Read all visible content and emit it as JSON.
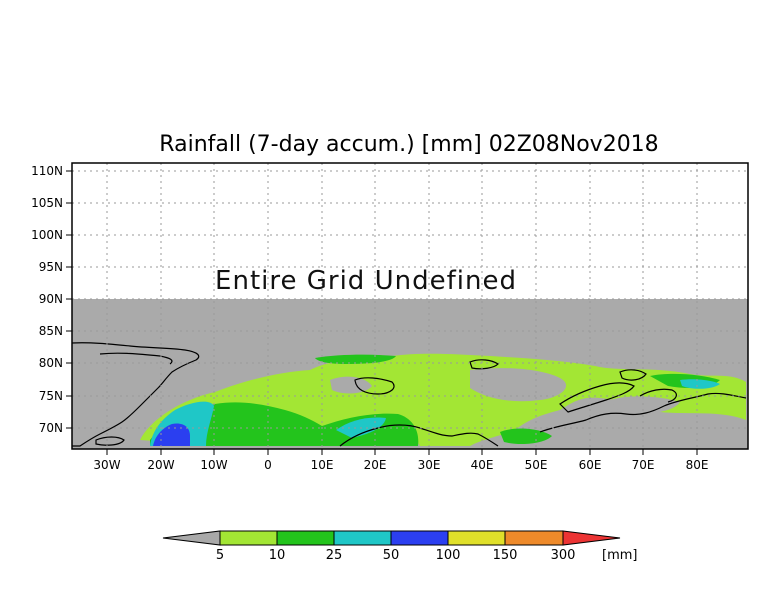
{
  "title": "Rainfall (7-day accum.) [mm] 02Z08Nov2018",
  "notice": "Entire Grid Undefined",
  "lat_ticks": [
    "110N",
    "105N",
    "100N",
    "95N",
    "90N",
    "85N",
    "80N",
    "75N",
    "70N"
  ],
  "lon_ticks": [
    "30W",
    "20W",
    "10W",
    "0",
    "10E",
    "20E",
    "30E",
    "40E",
    "50E",
    "60E",
    "70E",
    "80E"
  ],
  "legend": {
    "unit": "[mm]",
    "thresholds": [
      "5",
      "10",
      "25",
      "50",
      "100",
      "150",
      "300"
    ],
    "colors": {
      "below": "#a9a9a9",
      "bins": [
        "#a3e634",
        "#23c41c",
        "#1fc7c7",
        "#2b3ff0",
        "#e0e02a",
        "#ee8a2a",
        "#ec3434"
      ]
    }
  },
  "colors": {
    "undefined_region": "#ffffff",
    "no_data": "#aaaaaa",
    "coastline": "#000000"
  },
  "map_extent": {
    "lon": [
      "35W",
      "90E"
    ],
    "lat": [
      "67N",
      "110N"
    ]
  }
}
